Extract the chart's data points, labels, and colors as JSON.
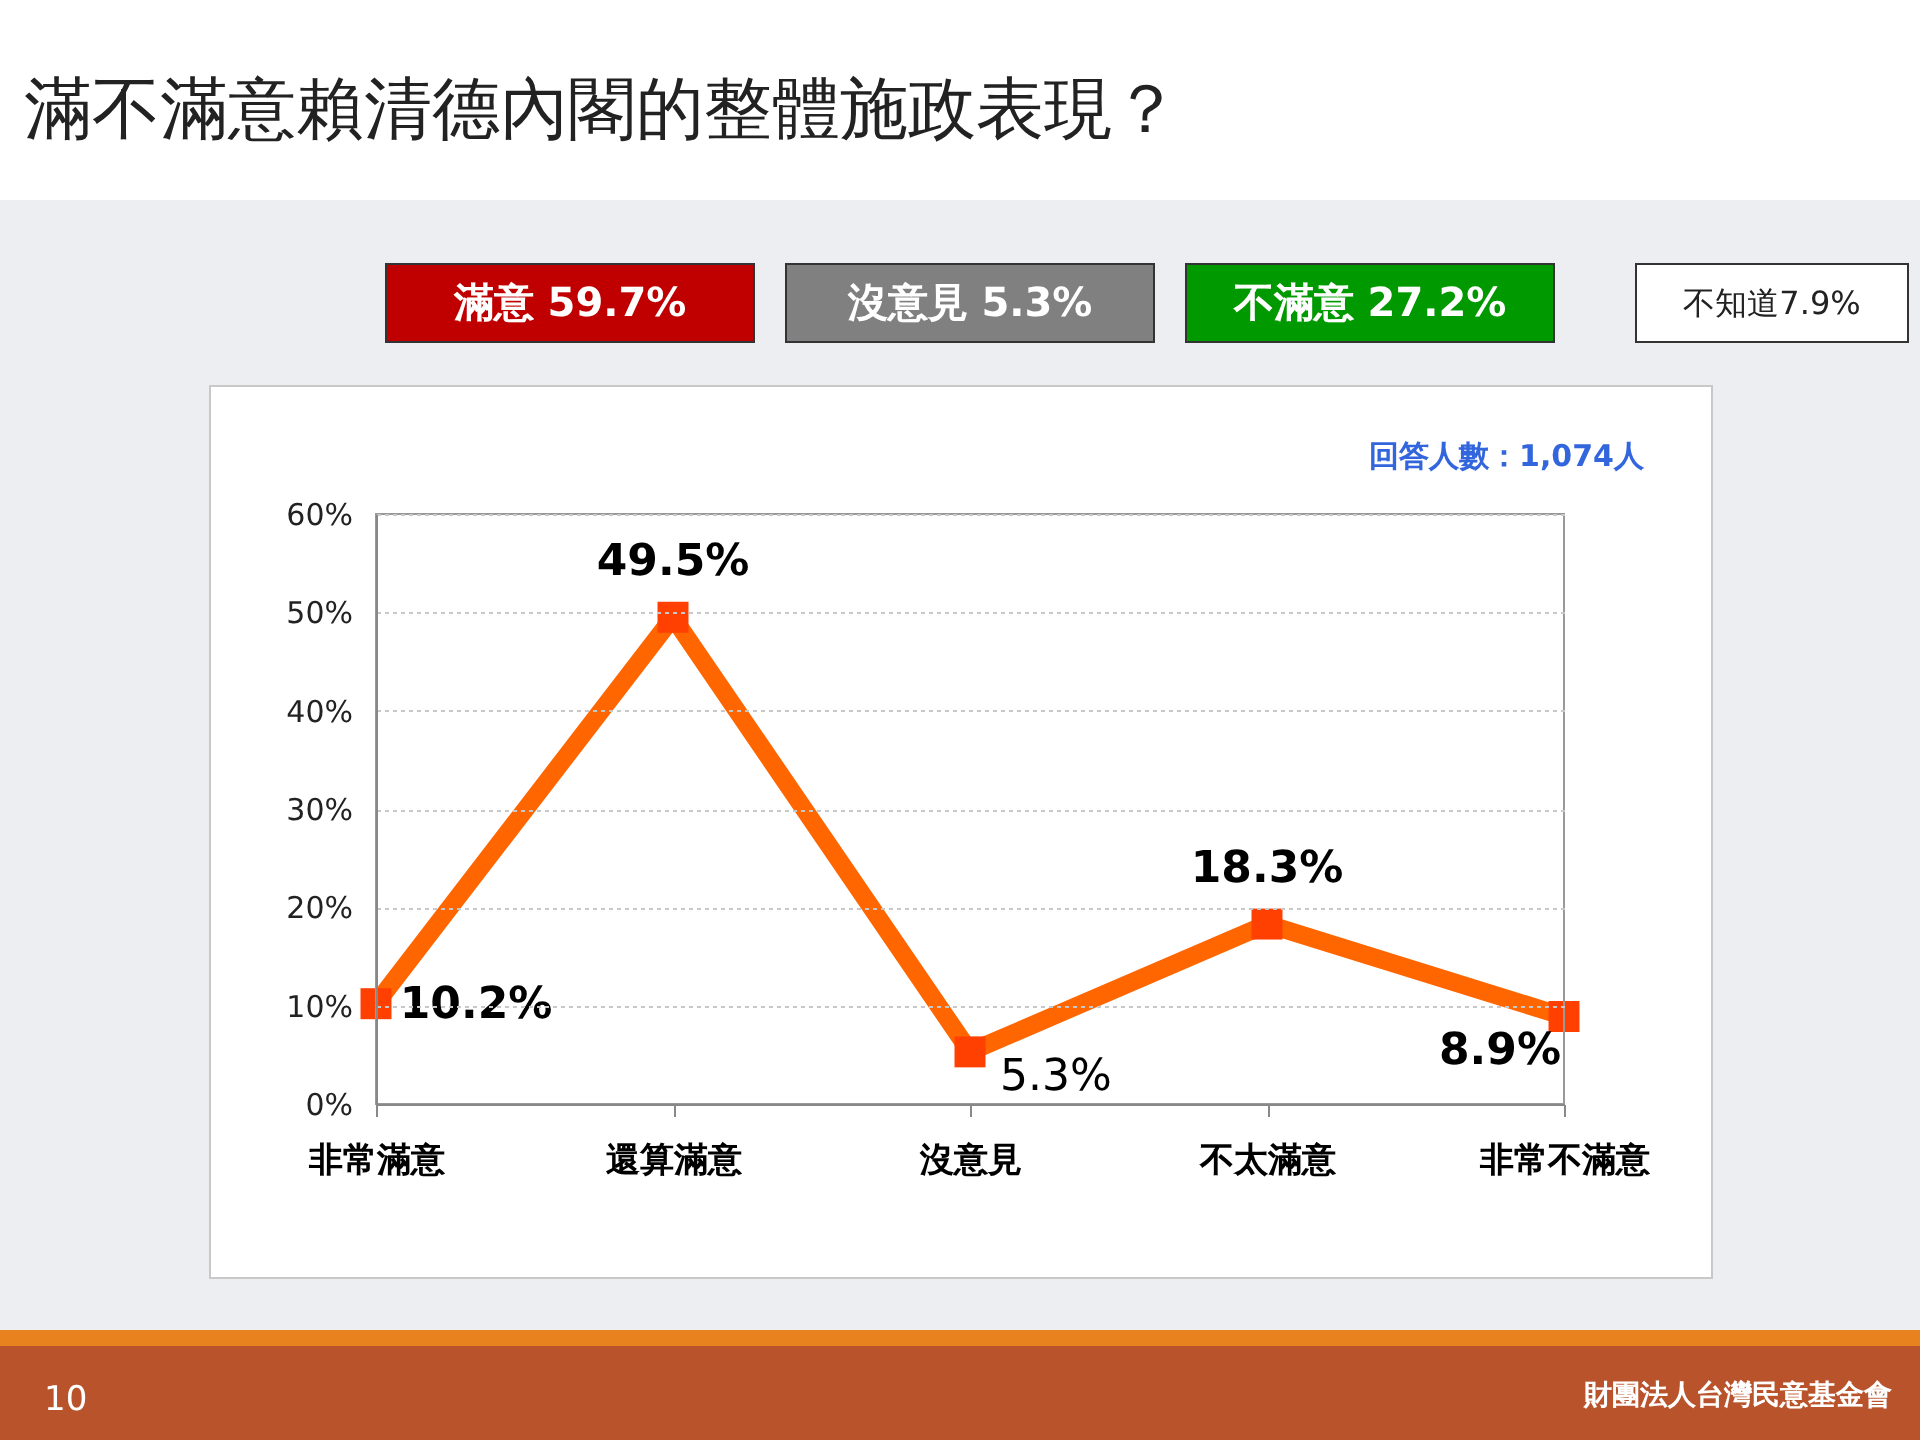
{
  "chart_data": {
    "type": "line",
    "title": "滿不滿意賴清德內閣的整體施政表現？",
    "categories": [
      "非常滿意",
      "還算滿意",
      "沒意見",
      "不太滿意",
      "非常不滿意"
    ],
    "series": [
      {
        "color": "#ff6600",
        "values": [
          10.2,
          49.5,
          5.3,
          18.3,
          8.9
        ]
      }
    ],
    "value_labels": [
      "10.2%",
      "49.5%",
      "5.3%",
      "18.3%",
      "8.9%"
    ],
    "ylim": [
      0,
      60
    ],
    "yticks": [
      {
        "value": 0,
        "label": "0%"
      },
      {
        "value": 10,
        "label": "10%"
      },
      {
        "value": 20,
        "label": "20%"
      },
      {
        "value": 30,
        "label": "30%"
      },
      {
        "value": 40,
        "label": "40%"
      },
      {
        "value": 50,
        "label": "50%"
      },
      {
        "value": 60,
        "label": "60%"
      }
    ],
    "grid": "y",
    "legend": false,
    "marker": "square",
    "line_style": "solid",
    "annotations": [
      "滿意 59.7%",
      "沒意見 5.3%",
      "不滿意 27.2%",
      "不知道7.9%",
      "回答人數：1,074人",
      "10",
      "財團法人台灣民意基金會"
    ]
  }
}
